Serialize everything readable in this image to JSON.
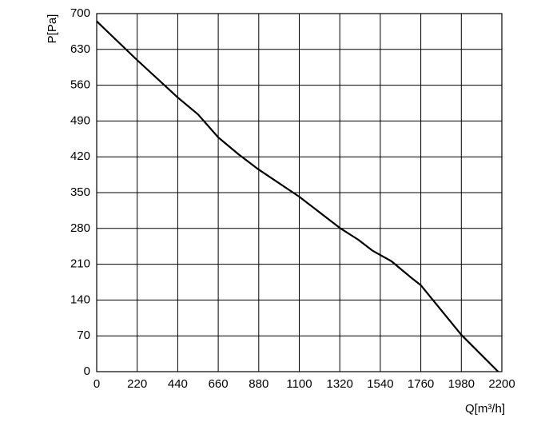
{
  "chart_data": {
    "type": "line",
    "xlabel": "Q[m³/h]",
    "ylabel": "P[Pa]",
    "x": [
      0,
      220,
      440,
      550,
      660,
      770,
      880,
      1100,
      1320,
      1420,
      1500,
      1600,
      1700,
      1760,
      1980,
      2180
    ],
    "series": [
      {
        "color": "#000000",
        "values": [
          685,
          609,
          536,
          503,
          458,
          425,
          395,
          342,
          281,
          258,
          236,
          216,
          186,
          169,
          72,
          0
        ]
      }
    ],
    "xlim": [
      0,
      2200
    ],
    "xticks": [
      0,
      220,
      440,
      660,
      880,
      1100,
      1320,
      1540,
      1760,
      1980,
      2200
    ],
    "ylim": [
      0,
      700
    ],
    "yticks": [
      0,
      70,
      140,
      210,
      280,
      350,
      420,
      490,
      560,
      630,
      700
    ],
    "grid": true
  }
}
